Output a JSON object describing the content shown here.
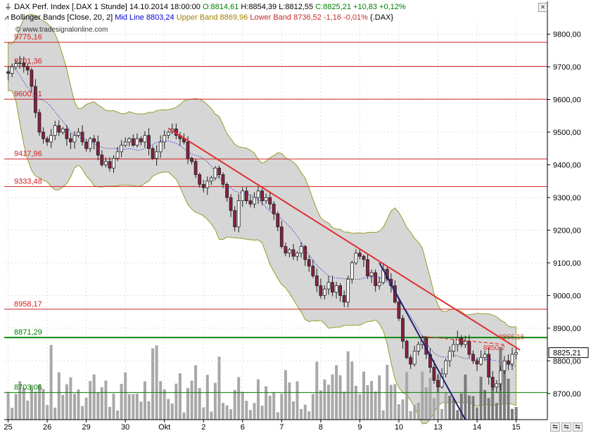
{
  "header": {
    "instrument": "DAX Perf. Index [.DAX  1 Stunde]",
    "datetime": "14.10.2014 18:00:00",
    "open": "O:8814,61",
    "high": "H:8854,39",
    "low": "L:8812,55",
    "close": "C:8825,21",
    "change": "+10,83",
    "change_pct": "+0,12%",
    "close_color": "#008000",
    "indicator_name": "Bollinger Bands [Close, 20, 2]",
    "mid_label": "Mid Line",
    "mid_value": "8803,24",
    "upper_label": "Upper Band",
    "upper_value": "8869,96",
    "lower_label": "Lower Band",
    "lower_value": "8736,52",
    "band_change": "-1,16",
    "band_change_pct": "-0,01%",
    "band_symbol": "{.DAX}",
    "watermark": "© www.tradesignalonline.com"
  },
  "colors": {
    "upper_color": "#c8a000",
    "lower_color": "#c82828",
    "mid_color": "#0000d0",
    "hline_red": "#d02020",
    "hline_green": "#008000",
    "trend_red": "#e03030",
    "trend_blue": "#202070",
    "band_fill": "#d6d6d6",
    "band_edge": "#9a9a2a",
    "candle_up": "#ffffff",
    "candle_down": "#8a2040",
    "volume": "#a8a8a8"
  },
  "chart_data": {
    "type": "candlestick",
    "title": "DAX Perf. Index [.DAX  1 Stunde]",
    "y_axis": {
      "ylim": [
        8620,
        9840
      ],
      "ticks": [
        "9800,00",
        "9700,00",
        "9600,00",
        "9500,00",
        "9400,00",
        "9300,00",
        "9200,00",
        "9100,00",
        "9000,00",
        "8900,00",
        "8800,00",
        "8700,00"
      ],
      "tick_values": [
        9800,
        9700,
        9600,
        9500,
        9400,
        9300,
        9200,
        9100,
        9000,
        8900,
        8800,
        8700
      ]
    },
    "x_axis": {
      "labels": [
        "25",
        "26",
        "29",
        "30",
        "Okt",
        "2",
        "6",
        "7",
        "8",
        "9",
        "10",
        "13",
        "14",
        "15"
      ],
      "bar_index": [
        0,
        10,
        20,
        30,
        40,
        50,
        60,
        70,
        80,
        90,
        100,
        110,
        120,
        130
      ],
      "xlim": [
        -1,
        138
      ]
    },
    "last_price": "8825,21",
    "last_value": 8825.21,
    "horizontal_levels": [
      {
        "label": "9775,16",
        "value": 9775.16,
        "color": "red"
      },
      {
        "label": "9701,36",
        "value": 9701.36,
        "color": "red"
      },
      {
        "label": "9600,81",
        "value": 9600.81,
        "color": "red"
      },
      {
        "label": "9417,96",
        "value": 9417.96,
        "color": "red"
      },
      {
        "label": "9333,48",
        "value": 9333.48,
        "color": "red"
      },
      {
        "label": "8958,17",
        "value": 8958.17,
        "color": "red"
      },
      {
        "label": "8871,29",
        "value": 8871.29,
        "color": "green"
      },
      {
        "label": "8703,06",
        "value": 8703.06,
        "color": "green"
      }
    ],
    "trendlines": [
      {
        "color": "red",
        "from": [
          41,
          9512
        ],
        "to": [
          131,
          8833
        ],
        "label": "8866,16",
        "label_value": 8866.16
      },
      {
        "color": "blue",
        "from": [
          95,
          9100
        ],
        "to": [
          117,
          8620
        ]
      },
      {
        "color": "red-dashed",
        "from": [
          106,
          8875
        ],
        "to": [
          127,
          8850
        ],
        "label": "8850,2",
        "label_value": 8850.2
      }
    ],
    "close_path": [
      [
        0,
        9680
      ],
      [
        1,
        9700
      ],
      [
        2,
        9710
      ],
      [
        3,
        9712
      ],
      [
        4,
        9700
      ],
      [
        5,
        9690
      ],
      [
        6,
        9640
      ],
      [
        7,
        9560
      ],
      [
        8,
        9500
      ],
      [
        9,
        9480
      ],
      [
        10,
        9470
      ],
      [
        11,
        9490
      ],
      [
        12,
        9520
      ],
      [
        13,
        9500
      ],
      [
        14,
        9510
      ],
      [
        15,
        9480
      ],
      [
        16,
        9470
      ],
      [
        17,
        9490
      ],
      [
        18,
        9500
      ],
      [
        19,
        9470
      ],
      [
        20,
        9450
      ],
      [
        21,
        9480
      ],
      [
        22,
        9470
      ],
      [
        23,
        9430
      ],
      [
        24,
        9400
      ],
      [
        25,
        9410
      ],
      [
        26,
        9390
      ],
      [
        27,
        9420
      ],
      [
        28,
        9440
      ],
      [
        29,
        9460
      ],
      [
        30,
        9470
      ],
      [
        31,
        9480
      ],
      [
        32,
        9460
      ],
      [
        33,
        9480
      ],
      [
        34,
        9470
      ],
      [
        35,
        9490
      ],
      [
        36,
        9450
      ],
      [
        37,
        9420
      ],
      [
        38,
        9440
      ],
      [
        39,
        9470
      ],
      [
        40,
        9490
      ],
      [
        41,
        9500
      ],
      [
        42,
        9510
      ],
      [
        43,
        9490
      ],
      [
        44,
        9480
      ],
      [
        45,
        9470
      ],
      [
        46,
        9420
      ],
      [
        47,
        9410
      ],
      [
        48,
        9370
      ],
      [
        49,
        9340
      ],
      [
        50,
        9330
      ],
      [
        51,
        9350
      ],
      [
        52,
        9360
      ],
      [
        53,
        9390
      ],
      [
        54,
        9370
      ],
      [
        55,
        9340
      ],
      [
        56,
        9300
      ],
      [
        57,
        9260
      ],
      [
        58,
        9210
      ],
      [
        59,
        9290
      ],
      [
        60,
        9320
      ],
      [
        61,
        9290
      ],
      [
        62,
        9280
      ],
      [
        63,
        9300
      ],
      [
        64,
        9320
      ],
      [
        65,
        9290
      ],
      [
        66,
        9300
      ],
      [
        67,
        9280
      ],
      [
        68,
        9250
      ],
      [
        69,
        9210
      ],
      [
        70,
        9150
      ],
      [
        71,
        9130
      ],
      [
        72,
        9140
      ],
      [
        73,
        9120
      ],
      [
        74,
        9130
      ],
      [
        75,
        9150
      ],
      [
        76,
        9110
      ],
      [
        77,
        9090
      ],
      [
        78,
        9060
      ],
      [
        79,
        9030
      ],
      [
        80,
        9000
      ],
      [
        81,
        9020
      ],
      [
        82,
        9040
      ],
      [
        83,
        9010
      ],
      [
        84,
        9030
      ],
      [
        85,
        9000
      ],
      [
        86,
        8980
      ],
      [
        87,
        9050
      ],
      [
        88,
        9100
      ],
      [
        89,
        9130
      ],
      [
        90,
        9120
      ],
      [
        91,
        9110
      ],
      [
        92,
        9060
      ],
      [
        93,
        9070
      ],
      [
        94,
        9030
      ],
      [
        95,
        9040
      ],
      [
        96,
        9080
      ],
      [
        97,
        9050
      ],
      [
        98,
        9030
      ],
      [
        99,
        8980
      ],
      [
        100,
        8930
      ],
      [
        101,
        8860
      ],
      [
        102,
        8810
      ],
      [
        103,
        8790
      ],
      [
        104,
        8830
      ],
      [
        105,
        8850
      ],
      [
        106,
        8870
      ],
      [
        107,
        8820
      ],
      [
        108,
        8780
      ],
      [
        109,
        8740
      ],
      [
        110,
        8720
      ],
      [
        111,
        8760
      ],
      [
        112,
        8800
      ],
      [
        113,
        8830
      ],
      [
        114,
        8850
      ],
      [
        115,
        8870
      ],
      [
        116,
        8850
      ],
      [
        117,
        8860
      ],
      [
        118,
        8820
      ],
      [
        119,
        8800
      ],
      [
        120,
        8790
      ],
      [
        121,
        8810
      ],
      [
        122,
        8820
      ],
      [
        123,
        8750
      ],
      [
        124,
        8720
      ],
      [
        125,
        8730
      ],
      [
        126,
        8770
      ],
      [
        127,
        8800
      ],
      [
        128,
        8790
      ],
      [
        129,
        8820
      ],
      [
        130,
        8825
      ]
    ],
    "volume_max": 120
  },
  "scroll": {
    "left": "⇆",
    "right": "⇆"
  }
}
